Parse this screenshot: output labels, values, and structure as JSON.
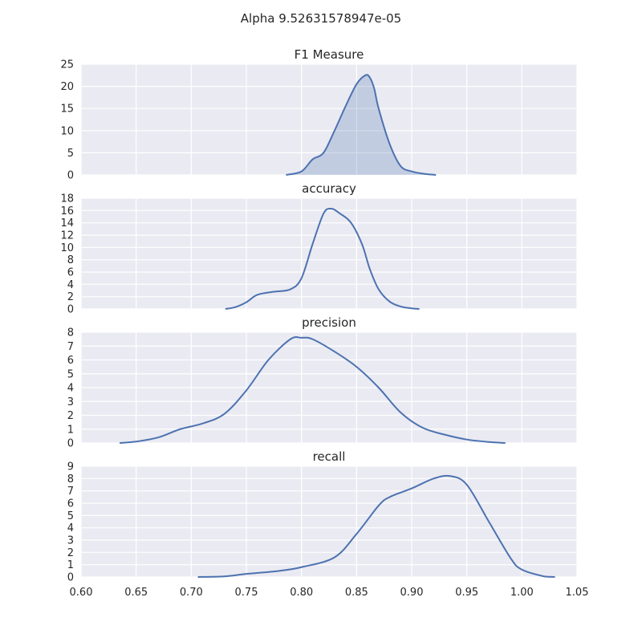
{
  "figure": {
    "title": "Alpha 9.52631578947e-05"
  },
  "style": {
    "panel_background": "#EAEAF2",
    "grid_color": "#FFFFFF",
    "line_color": "#4C72B0",
    "fill_color": "#4C72B0",
    "text_color": "#262626"
  },
  "chart_data": [
    {
      "type": "area",
      "title": "F1 Measure",
      "xlim": [
        0.6,
        1.05
      ],
      "ylim": [
        0,
        25
      ],
      "yticks": [
        0,
        5,
        10,
        15,
        20,
        25
      ],
      "xticks": [
        0.6,
        0.65,
        0.7,
        0.75,
        0.8,
        0.85,
        0.9,
        0.95,
        1.0,
        1.05
      ],
      "show_xtick_labels": false,
      "filled": true,
      "grid": true,
      "x": [
        0.786,
        0.8,
        0.81,
        0.82,
        0.83,
        0.84,
        0.85,
        0.858,
        0.862,
        0.866,
        0.87,
        0.88,
        0.89,
        0.9,
        0.91,
        0.92,
        0.922
      ],
      "y": [
        0.0,
        0.8,
        3.5,
        5.0,
        10.0,
        15.5,
        20.5,
        22.5,
        22.0,
        19.5,
        15.0,
        7.0,
        2.0,
        0.8,
        0.3,
        0.05,
        0.0
      ]
    },
    {
      "type": "line",
      "title": "accuracy",
      "xlim": [
        0.6,
        1.05
      ],
      "ylim": [
        0,
        18
      ],
      "yticks": [
        0,
        2,
        4,
        6,
        8,
        10,
        12,
        14,
        16,
        18
      ],
      "xticks": [
        0.6,
        0.65,
        0.7,
        0.75,
        0.8,
        0.85,
        0.9,
        0.95,
        1.0,
        1.05
      ],
      "show_xtick_labels": false,
      "filled": false,
      "grid": true,
      "x": [
        0.731,
        0.74,
        0.75,
        0.76,
        0.775,
        0.79,
        0.8,
        0.81,
        0.82,
        0.827,
        0.835,
        0.845,
        0.855,
        0.862,
        0.87,
        0.88,
        0.89,
        0.9,
        0.907
      ],
      "y": [
        0.0,
        0.3,
        1.1,
        2.3,
        2.8,
        3.2,
        5.0,
        10.5,
        15.5,
        16.3,
        15.5,
        14.0,
        10.5,
        6.5,
        3.2,
        1.2,
        0.4,
        0.1,
        0.0
      ]
    },
    {
      "type": "line",
      "title": "precision",
      "xlim": [
        0.6,
        1.05
      ],
      "ylim": [
        0,
        8
      ],
      "yticks": [
        0,
        1,
        2,
        3,
        4,
        5,
        6,
        7,
        8
      ],
      "xticks": [
        0.6,
        0.65,
        0.7,
        0.75,
        0.8,
        0.85,
        0.9,
        0.95,
        1.0,
        1.05
      ],
      "show_xtick_labels": false,
      "filled": false,
      "grid": true,
      "x": [
        0.635,
        0.65,
        0.67,
        0.69,
        0.71,
        0.73,
        0.75,
        0.77,
        0.79,
        0.8,
        0.81,
        0.83,
        0.85,
        0.87,
        0.89,
        0.91,
        0.93,
        0.95,
        0.97,
        0.985
      ],
      "y": [
        0.0,
        0.1,
        0.4,
        1.0,
        1.4,
        2.1,
        3.8,
        6.0,
        7.5,
        7.6,
        7.5,
        6.6,
        5.5,
        4.0,
        2.2,
        1.1,
        0.6,
        0.25,
        0.07,
        0.0
      ]
    },
    {
      "type": "line",
      "title": "recall",
      "xlim": [
        0.6,
        1.05
      ],
      "ylim": [
        0,
        9
      ],
      "yticks": [
        0,
        1,
        2,
        3,
        4,
        5,
        6,
        7,
        8,
        9
      ],
      "xticks": [
        0.6,
        0.65,
        0.7,
        0.75,
        0.8,
        0.85,
        0.9,
        0.95,
        1.0,
        1.05
      ],
      "xtick_labels": [
        "0.60",
        "0.65",
        "0.70",
        "0.75",
        "0.80",
        "0.85",
        "0.90",
        "0.95",
        "1.00",
        "1.05"
      ],
      "show_xtick_labels": true,
      "filled": false,
      "grid": true,
      "x": [
        0.706,
        0.73,
        0.75,
        0.78,
        0.8,
        0.83,
        0.85,
        0.87,
        0.88,
        0.9,
        0.92,
        0.935,
        0.95,
        0.97,
        0.99,
        1.0,
        1.02,
        1.03
      ],
      "y": [
        0.0,
        0.05,
        0.25,
        0.5,
        0.8,
        1.6,
        3.5,
        5.8,
        6.5,
        7.2,
        8.0,
        8.2,
        7.5,
        4.5,
        1.5,
        0.6,
        0.05,
        0.0
      ]
    }
  ]
}
